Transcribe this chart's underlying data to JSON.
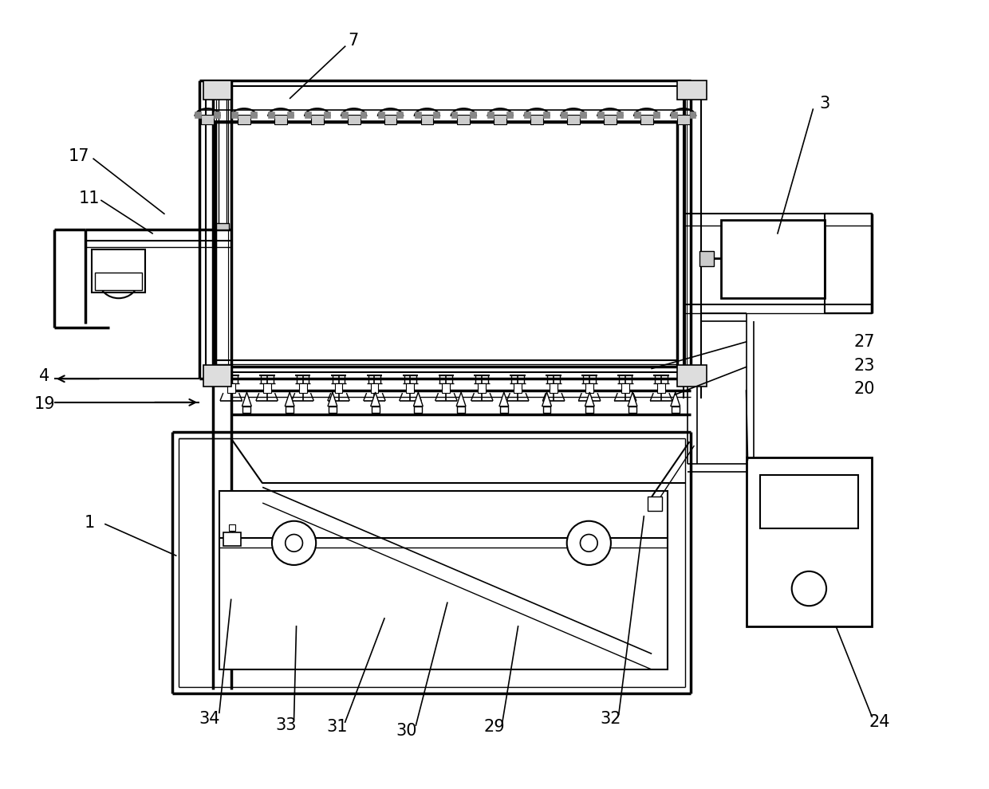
{
  "bg_color": "#ffffff",
  "lc": "#000000",
  "lw": 1.5,
  "tlw": 2.5,
  "fig_width": 12.4,
  "fig_height": 9.9
}
